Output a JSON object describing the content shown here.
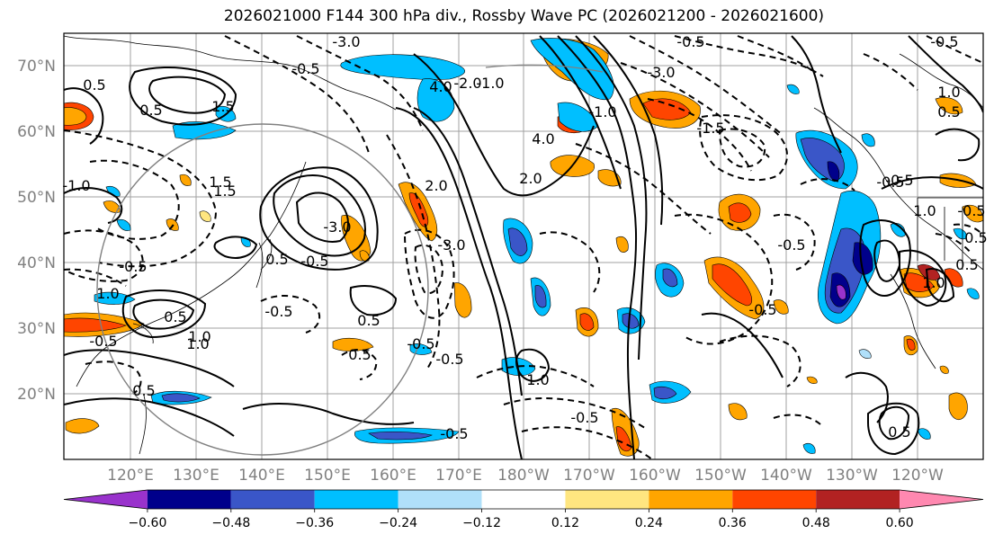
{
  "title": "2026021000 F144 300 hPa div., Rossby Wave PC (2026021200 - 2026021600)",
  "lat_labels": [
    "70°N",
    "60°N",
    "50°N",
    "40°N",
    "30°N",
    "20°N"
  ],
  "lon_labels": [
    "120°E",
    "130°E",
    "140°E",
    "150°E",
    "160°E",
    "170°E",
    "180°W",
    "170°W",
    "160°W",
    "150°W",
    "140°W",
    "130°W",
    "120°W"
  ],
  "colorbar": {
    "colors": [
      "#9932cc",
      "#00008b",
      "#3a56c8",
      "#00bfff",
      "#b0e0fa",
      "#ffffff",
      "#ffe680",
      "#ffa500",
      "#ff4500",
      "#b22222",
      "#ff88b0"
    ],
    "ticks": [
      "−0.60",
      "−0.48",
      "−0.36",
      "−0.24",
      "−0.12",
      "0.12",
      "0.24",
      "0.36",
      "0.48",
      "0.60"
    ]
  },
  "contour_labels": [
    "-3.0",
    "-3.0",
    "-0.5",
    "-0.5",
    "-0.5",
    "1.0",
    "0.5",
    "0.5",
    "-1.0",
    "1.5",
    "1.5",
    "-0.5",
    "0.5",
    "1.0",
    "-0.5",
    "4.0",
    "2.0",
    "4.0",
    "-2.0",
    "-1.0",
    "-3.0",
    "2.0",
    "-1.5",
    "-3.0",
    "-0.5",
    "-0.5",
    "0.5",
    "0.5",
    "-0.5",
    "-0.5",
    "-0.5",
    "0.5",
    "1.0",
    "1.0",
    "0.5",
    "-0.5",
    "0.5",
    "-0.5",
    "-0.5",
    "1.5",
    "1.0",
    "0.5",
    "-0.5",
    "0.5",
    "-0.5",
    "-1.0",
    "0.5",
    "1.0",
    "1.0",
    "-0.5"
  ]
}
